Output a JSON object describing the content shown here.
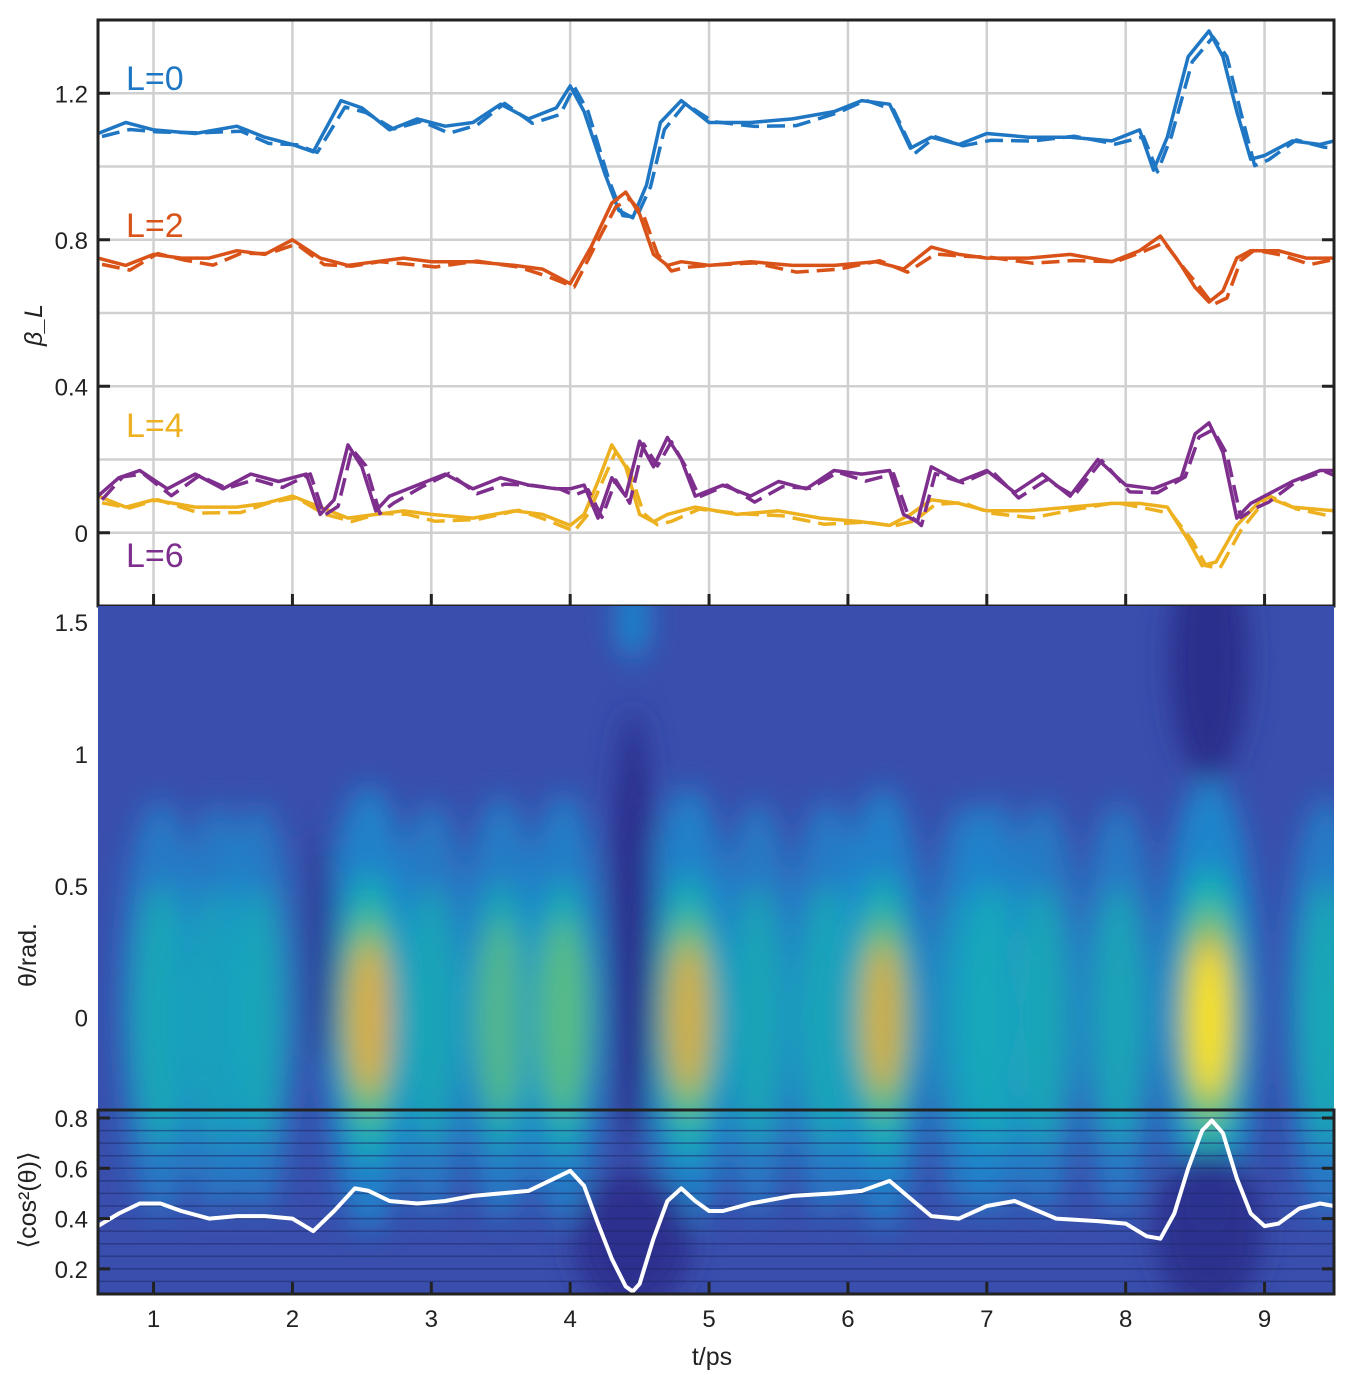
{
  "chart_data": [
    {
      "type": "line",
      "title": "",
      "xlabel": "",
      "ylabel": "β_L",
      "xlim": [
        0.6,
        9.5
      ],
      "ylim": [
        -0.2,
        1.4
      ],
      "yticks": [
        0,
        0.4,
        0.8,
        1.2
      ],
      "ytick_labels": [
        "0",
        "0.4",
        "0.8",
        "1.2"
      ],
      "grid": true,
      "series": [
        {
          "name": "L=0",
          "color": "#1f77c4",
          "x": [
            0.6,
            0.8,
            1.0,
            1.3,
            1.6,
            1.8,
            2.0,
            2.15,
            2.35,
            2.5,
            2.7,
            2.9,
            3.1,
            3.3,
            3.5,
            3.7,
            3.9,
            4.0,
            4.1,
            4.25,
            4.35,
            4.45,
            4.55,
            4.65,
            4.8,
            5.0,
            5.3,
            5.6,
            5.9,
            6.1,
            6.3,
            6.45,
            6.6,
            6.8,
            7.0,
            7.3,
            7.6,
            7.9,
            8.1,
            8.2,
            8.3,
            8.45,
            8.6,
            8.7,
            8.8,
            8.9,
            9.0,
            9.2,
            9.4,
            9.5
          ],
          "values": [
            1.09,
            1.12,
            1.1,
            1.09,
            1.11,
            1.08,
            1.06,
            1.04,
            1.18,
            1.16,
            1.1,
            1.13,
            1.11,
            1.12,
            1.17,
            1.13,
            1.16,
            1.22,
            1.15,
            0.98,
            0.88,
            0.86,
            0.95,
            1.12,
            1.18,
            1.12,
            1.12,
            1.13,
            1.15,
            1.18,
            1.17,
            1.05,
            1.08,
            1.06,
            1.09,
            1.08,
            1.08,
            1.07,
            1.1,
            0.99,
            1.08,
            1.3,
            1.37,
            1.3,
            1.15,
            1.02,
            1.03,
            1.07,
            1.06,
            1.07
          ]
        },
        {
          "name": "L=2",
          "color": "#d95319",
          "x": [
            0.6,
            0.8,
            1.0,
            1.2,
            1.4,
            1.6,
            1.8,
            2.0,
            2.2,
            2.4,
            2.6,
            2.8,
            3.0,
            3.3,
            3.6,
            3.8,
            4.0,
            4.15,
            4.3,
            4.4,
            4.5,
            4.6,
            4.7,
            4.8,
            5.0,
            5.3,
            5.6,
            5.9,
            6.2,
            6.4,
            6.6,
            6.8,
            7.0,
            7.3,
            7.6,
            7.9,
            8.1,
            8.25,
            8.4,
            8.5,
            8.6,
            8.7,
            8.8,
            8.9,
            9.1,
            9.3,
            9.5
          ],
          "values": [
            0.75,
            0.73,
            0.76,
            0.75,
            0.75,
            0.77,
            0.76,
            0.8,
            0.75,
            0.73,
            0.74,
            0.75,
            0.74,
            0.74,
            0.73,
            0.72,
            0.68,
            0.78,
            0.9,
            0.93,
            0.87,
            0.76,
            0.73,
            0.74,
            0.73,
            0.74,
            0.73,
            0.73,
            0.74,
            0.72,
            0.78,
            0.76,
            0.75,
            0.75,
            0.76,
            0.74,
            0.77,
            0.81,
            0.73,
            0.67,
            0.63,
            0.66,
            0.75,
            0.77,
            0.77,
            0.75,
            0.75
          ]
        },
        {
          "name": "L=4",
          "color": "#edb120",
          "x": [
            0.6,
            0.8,
            1.0,
            1.3,
            1.6,
            1.8,
            2.0,
            2.2,
            2.4,
            2.6,
            2.8,
            3.0,
            3.3,
            3.6,
            3.8,
            4.0,
            4.1,
            4.2,
            4.3,
            4.4,
            4.5,
            4.6,
            4.7,
            4.9,
            5.2,
            5.5,
            5.8,
            6.1,
            6.3,
            6.45,
            6.6,
            6.8,
            7.0,
            7.3,
            7.6,
            7.9,
            8.1,
            8.3,
            8.45,
            8.55,
            8.65,
            8.8,
            9.0,
            9.2,
            9.5
          ],
          "values": [
            0.1,
            0.07,
            0.09,
            0.07,
            0.07,
            0.08,
            0.1,
            0.07,
            0.04,
            0.05,
            0.06,
            0.05,
            0.04,
            0.06,
            0.05,
            0.02,
            0.05,
            0.14,
            0.24,
            0.18,
            0.05,
            0.03,
            0.05,
            0.07,
            0.05,
            0.06,
            0.04,
            0.03,
            0.02,
            0.05,
            0.09,
            0.08,
            0.06,
            0.06,
            0.07,
            0.08,
            0.08,
            0.07,
            -0.02,
            -0.09,
            -0.08,
            0.02,
            0.1,
            0.07,
            0.06
          ]
        },
        {
          "name": "L=6",
          "color": "#7e2f8e",
          "x": [
            0.6,
            0.75,
            0.9,
            1.1,
            1.3,
            1.5,
            1.7,
            1.9,
            2.1,
            2.2,
            2.3,
            2.4,
            2.5,
            2.6,
            2.7,
            2.9,
            3.1,
            3.3,
            3.5,
            3.7,
            3.9,
            4.0,
            4.1,
            4.2,
            4.3,
            4.4,
            4.5,
            4.6,
            4.7,
            4.8,
            4.9,
            5.1,
            5.3,
            5.5,
            5.7,
            5.9,
            6.1,
            6.3,
            6.4,
            6.5,
            6.6,
            6.8,
            7.0,
            7.2,
            7.4,
            7.6,
            7.8,
            8.0,
            8.2,
            8.4,
            8.5,
            8.6,
            8.7,
            8.8,
            8.9,
            9.0,
            9.2,
            9.4,
            9.5
          ],
          "values": [
            0.1,
            0.15,
            0.17,
            0.12,
            0.16,
            0.12,
            0.16,
            0.14,
            0.16,
            0.05,
            0.09,
            0.24,
            0.18,
            0.06,
            0.1,
            0.13,
            0.16,
            0.12,
            0.15,
            0.13,
            0.12,
            0.12,
            0.13,
            0.04,
            0.15,
            0.1,
            0.25,
            0.18,
            0.26,
            0.2,
            0.1,
            0.13,
            0.1,
            0.14,
            0.12,
            0.17,
            0.16,
            0.17,
            0.05,
            0.03,
            0.18,
            0.14,
            0.17,
            0.11,
            0.16,
            0.1,
            0.2,
            0.13,
            0.12,
            0.15,
            0.27,
            0.3,
            0.22,
            0.04,
            0.08,
            0.1,
            0.14,
            0.17,
            0.17
          ]
        }
      ],
      "linestyles": [
        "solid",
        "dashed"
      ]
    },
    {
      "type": "heatmap",
      "title": "",
      "xlabel": "",
      "ylabel": "θ/rad.",
      "xlim": [
        0.6,
        9.5
      ],
      "ylim": [
        -0.35,
        1.5
      ],
      "yticks": [
        0,
        0.5,
        1,
        1.5
      ],
      "ytick_labels": [
        "0",
        "0.5",
        "1",
        "1.5"
      ],
      "colormap": [
        "#2b2f8c",
        "#2f54b8",
        "#1b8fd0",
        "#19b6b0",
        "#7dc36b",
        "#f0a838",
        "#f9e81e"
      ],
      "hot_spots": [
        {
          "t": 1.05,
          "intensity": 0.45
        },
        {
          "t": 1.45,
          "intensity": 0.35
        },
        {
          "t": 1.75,
          "intensity": 0.35
        },
        {
          "t": 2.55,
          "intensity": 0.82
        },
        {
          "t": 3.0,
          "intensity": 0.4
        },
        {
          "t": 3.5,
          "intensity": 0.55
        },
        {
          "t": 3.95,
          "intensity": 0.62
        },
        {
          "t": 4.85,
          "intensity": 0.78
        },
        {
          "t": 5.35,
          "intensity": 0.4
        },
        {
          "t": 5.85,
          "intensity": 0.45
        },
        {
          "t": 6.25,
          "intensity": 0.76
        },
        {
          "t": 6.85,
          "intensity": 0.35
        },
        {
          "t": 7.05,
          "intensity": 0.45
        },
        {
          "t": 7.4,
          "intensity": 0.4
        },
        {
          "t": 7.95,
          "intensity": 0.38
        },
        {
          "t": 8.6,
          "intensity": 1.0
        },
        {
          "t": 9.45,
          "intensity": 0.5
        }
      ],
      "dark_spots": [
        {
          "t": 4.45,
          "intensity": 1.0
        },
        {
          "t": 2.2,
          "intensity": 0.5
        },
        {
          "t": 8.6,
          "intensity": 0.9
        }
      ]
    },
    {
      "type": "line",
      "title": "",
      "xlabel": "t/ps",
      "ylabel": "⟨cos²(θ)⟩",
      "xlim": [
        0.6,
        9.5
      ],
      "ylim": [
        0.1,
        0.8
      ],
      "xticks": [
        1,
        2,
        3,
        4,
        5,
        6,
        7,
        8,
        9
      ],
      "xtick_labels": [
        "1",
        "2",
        "3",
        "4",
        "5",
        "6",
        "7",
        "8",
        "9"
      ],
      "yticks": [
        0.2,
        0.4,
        0.6,
        0.8
      ],
      "ytick_labels": [
        "0.2",
        "0.4",
        "0.6",
        "0.8"
      ],
      "series": [
        {
          "color": "#ffffff",
          "x": [
            0.6,
            0.75,
            0.9,
            1.05,
            1.2,
            1.4,
            1.6,
            1.8,
            2.0,
            2.15,
            2.3,
            2.45,
            2.55,
            2.7,
            2.9,
            3.1,
            3.3,
            3.5,
            3.7,
            3.85,
            4.0,
            4.1,
            4.2,
            4.3,
            4.4,
            4.45,
            4.5,
            4.6,
            4.7,
            4.8,
            4.9,
            5.0,
            5.1,
            5.3,
            5.6,
            5.9,
            6.1,
            6.3,
            6.45,
            6.6,
            6.8,
            7.0,
            7.2,
            7.5,
            7.8,
            8.0,
            8.15,
            8.25,
            8.35,
            8.45,
            8.55,
            8.62,
            8.7,
            8.8,
            8.9,
            9.0,
            9.1,
            9.25,
            9.4,
            9.5
          ],
          "values": [
            0.37,
            0.42,
            0.46,
            0.46,
            0.43,
            0.4,
            0.41,
            0.41,
            0.4,
            0.35,
            0.43,
            0.52,
            0.51,
            0.47,
            0.46,
            0.47,
            0.49,
            0.5,
            0.51,
            0.55,
            0.59,
            0.53,
            0.38,
            0.24,
            0.13,
            0.11,
            0.14,
            0.32,
            0.47,
            0.52,
            0.47,
            0.43,
            0.43,
            0.46,
            0.49,
            0.5,
            0.51,
            0.55,
            0.48,
            0.41,
            0.4,
            0.45,
            0.47,
            0.4,
            0.39,
            0.38,
            0.33,
            0.32,
            0.42,
            0.6,
            0.75,
            0.79,
            0.74,
            0.56,
            0.42,
            0.37,
            0.38,
            0.44,
            0.46,
            0.45
          ]
        }
      ]
    }
  ],
  "labels": {
    "L0": "L=0",
    "L2": "L=2",
    "L4": "L=4",
    "L6": "L=6"
  }
}
